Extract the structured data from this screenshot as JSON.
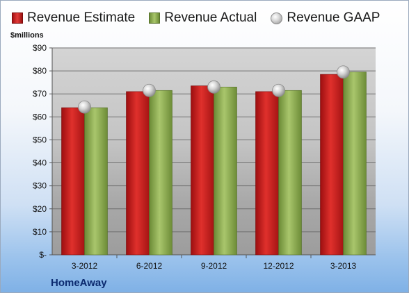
{
  "chart_data": {
    "type": "bar",
    "categories": [
      "3-2012",
      "6-2012",
      "9-2012",
      "12-2012",
      "3-2013"
    ],
    "series": [
      {
        "name": "Revenue Estimate",
        "values": [
          64,
          71,
          73.5,
          71,
          78.5
        ]
      },
      {
        "name": "Revenue Actual",
        "values": [
          64,
          71.5,
          73,
          71.5,
          79.5
        ]
      },
      {
        "name": "Revenue GAAP",
        "values": [
          64.3,
          71.5,
          73,
          71.5,
          79.5
        ]
      }
    ],
    "y_ticks": [
      "$-",
      "$10",
      "$20",
      "$30",
      "$40",
      "$50",
      "$60",
      "$70",
      "$80",
      "$90"
    ],
    "ylim": [
      0,
      90
    ],
    "ylabel": "$millions",
    "company": "HomeAway",
    "grid": true,
    "legend_placement": "top",
    "colors": {
      "estimate": "#c8201f",
      "actual": "#8fae56",
      "gaap": "#c9c9c9"
    }
  }
}
